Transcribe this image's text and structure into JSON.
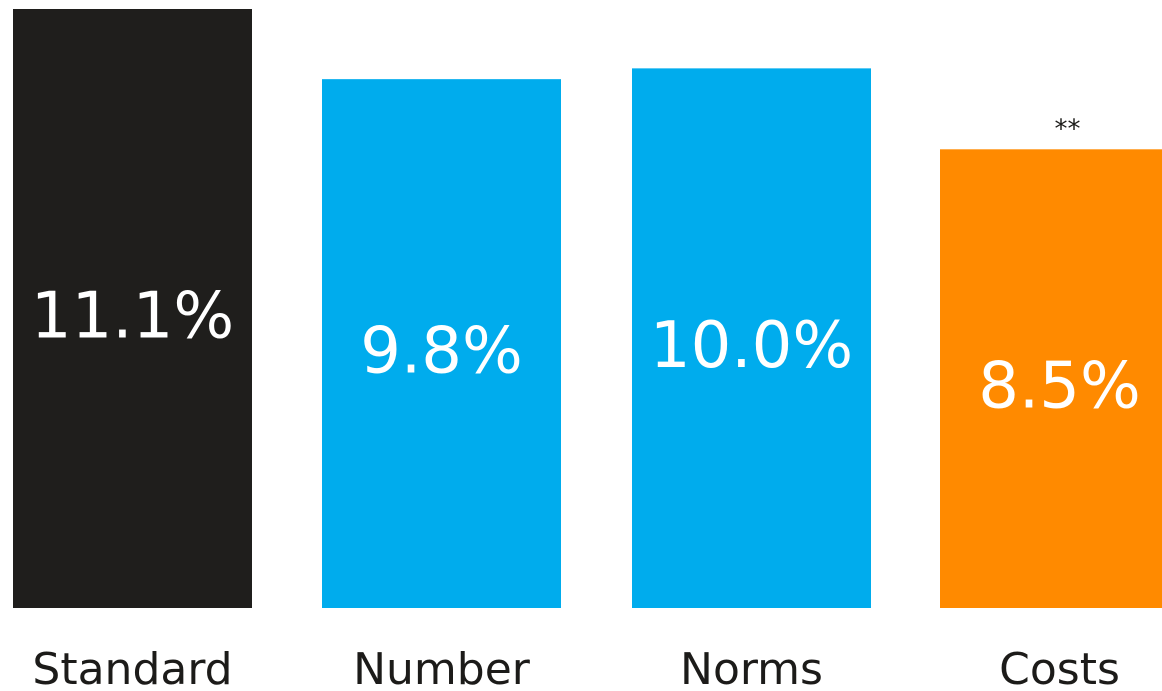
{
  "chart_data": {
    "type": "bar",
    "categories": [
      "Standard",
      "Number",
      "Norms",
      "Costs"
    ],
    "values": [
      11.1,
      9.8,
      10.0,
      8.5
    ],
    "value_labels": [
      "11.1%",
      "9.8%",
      "10.0%",
      "8.5%"
    ],
    "colors": [
      "#1f1e1c",
      "#00aced",
      "#00aced",
      "#ff8a00"
    ],
    "annotations": [
      {
        "category": "Costs",
        "text": "**"
      }
    ],
    "ylim": [
      0,
      11.1
    ],
    "grid": false,
    "legend": "none"
  }
}
